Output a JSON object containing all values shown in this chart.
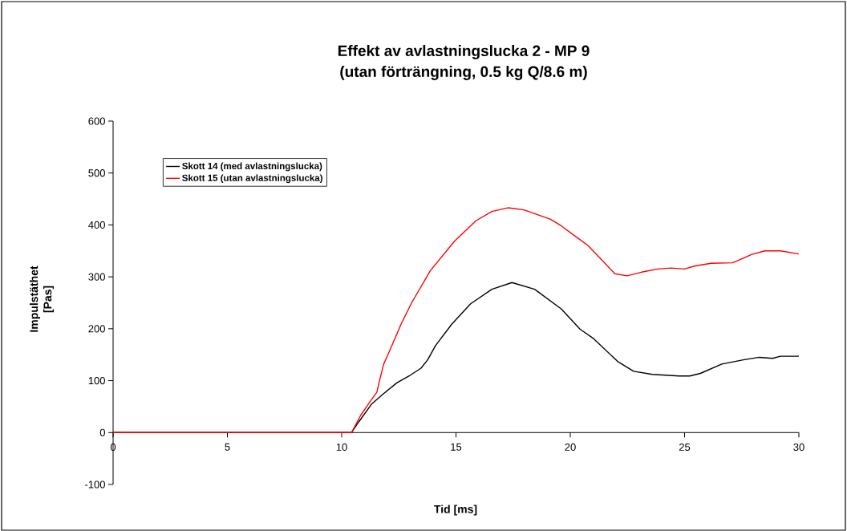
{
  "chart_data": {
    "type": "line",
    "title": "Effekt av avlastningslucka 2 - MP 9",
    "subtitle": "(utan förträngning, 0.5 kg Q/8.6 m)",
    "xlabel": "Tid [ms]",
    "ylabel": "Impulstäthet [Pas]",
    "xlim": [
      0,
      30
    ],
    "xticks": [
      0,
      5,
      10,
      15,
      20,
      25,
      30
    ],
    "ylim": [
      -100,
      600
    ],
    "yticks": [
      -100,
      0,
      100,
      200,
      300,
      400,
      500,
      600
    ],
    "grid": false,
    "legend": "top left",
    "marker": "none",
    "line_style": "solid",
    "series": [
      {
        "name": "Skott 14 (med avlastningslucka)",
        "color": "#000000",
        "x": [
          0,
          10.43,
          10.72,
          11.31,
          11.78,
          12.42,
          12.95,
          13.47,
          13.76,
          14.11,
          14.82,
          15.64,
          16.57,
          17.45,
          18.44,
          19.61,
          20.43,
          21.02,
          22.07,
          22.77,
          23.59,
          24.76,
          25.23,
          25.69,
          26.63,
          27.57,
          28.27,
          28.85,
          29.2,
          30
        ],
        "values": [
          0,
          0,
          19,
          55,
          73,
          96,
          109,
          124,
          140,
          168,
          209,
          248,
          276,
          289,
          276,
          238,
          199,
          181,
          137,
          118,
          112,
          109,
          109,
          114,
          132,
          140,
          145,
          143,
          147,
          147
        ]
      },
      {
        "name": "Skott 15 (utan avlastningslucka)",
        "color": "#ff0000",
        "x": [
          0,
          10.43,
          10.84,
          11.25,
          11.54,
          11.66,
          11.84,
          12.0,
          12.25,
          12.6,
          13.06,
          13.88,
          14.94,
          15.87,
          16.57,
          17.27,
          17.97,
          19.14,
          19.61,
          20.32,
          20.78,
          21.95,
          22.48,
          23.12,
          23.82,
          24.41,
          24.99,
          25.46,
          26.16,
          27.1,
          27.57,
          27.92,
          28.5,
          29.2,
          30
        ],
        "values": [
          0,
          0,
          34,
          60,
          78,
          101,
          132,
          148,
          173,
          209,
          250,
          312,
          369,
          408,
          426,
          433,
          429,
          411,
          398,
          375,
          360,
          306,
          302,
          309,
          315,
          317,
          315,
          321,
          326,
          327,
          336,
          343,
          350,
          350,
          344
        ]
      }
    ]
  }
}
